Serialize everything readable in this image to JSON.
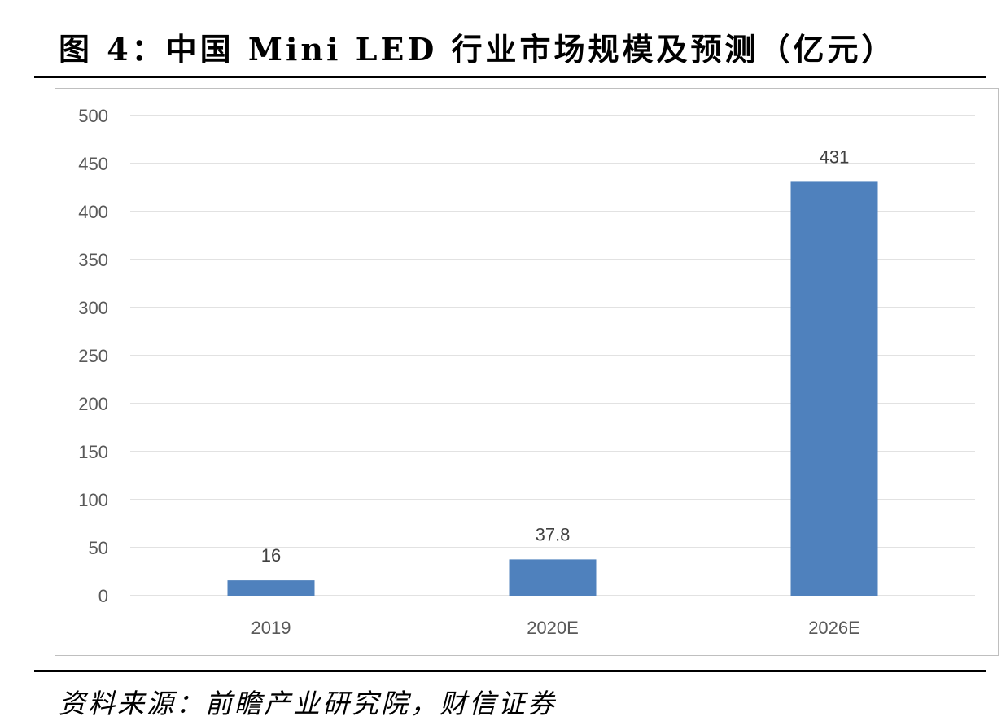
{
  "title": "图 4：中国 Mini LED 行业市场规模及预测（亿元）",
  "source": "资料来源：前瞻产业研究院，财信证券",
  "chart_data": {
    "type": "bar",
    "title": "图 4：中国 Mini LED 行业市场规模及预测（亿元）",
    "categories": [
      "2019",
      "2020E",
      "2026E"
    ],
    "values": [
      16,
      37.8,
      431
    ],
    "data_labels": [
      "16",
      "37.8",
      "431"
    ],
    "yticks": [
      "0",
      "50",
      "100",
      "150",
      "200",
      "250",
      "300",
      "350",
      "400",
      "450",
      "500"
    ],
    "ylim": [
      0,
      500
    ],
    "xlabel": "",
    "ylabel": "",
    "grid": true,
    "legend": "none",
    "bar_color": "#4f81bd"
  }
}
